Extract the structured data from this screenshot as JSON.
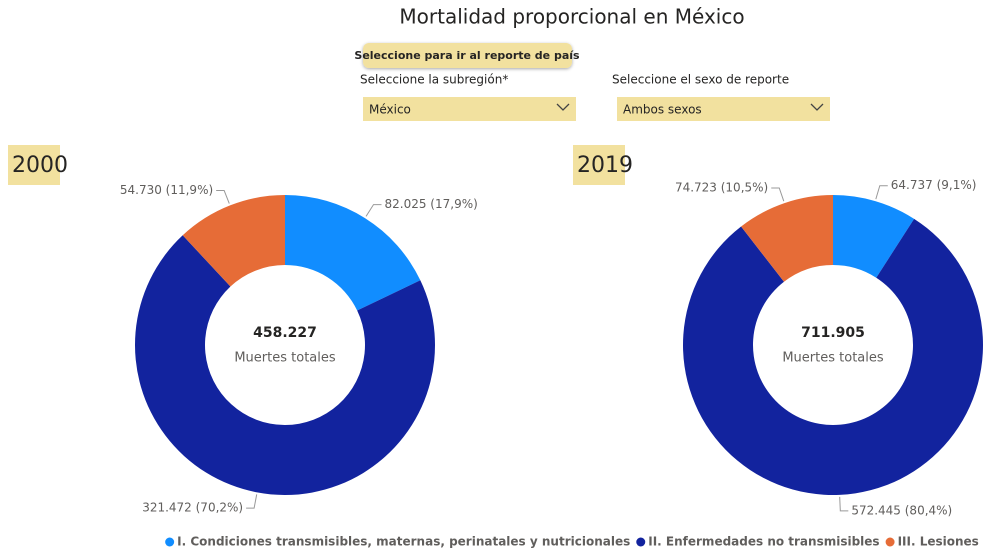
{
  "header": {
    "title": "Mortalidad proporcional en México"
  },
  "controls": {
    "button": "Seleccione para ir al reporte de país",
    "subregion_label": "Seleccione la subregión*",
    "subregion_value": "México",
    "sex_label": "Seleccione el sexo de reporte",
    "sex_value": "Ambos sexos"
  },
  "legend": {
    "categories": [
      "I. Condiciones transmisibles, maternas, perinatales y nutricionales",
      "II. Enfermedades no transmisibles",
      "III. Lesiones"
    ],
    "colors": [
      "#118dff",
      "#12239e",
      "#e66c37"
    ]
  },
  "chart_data": [
    {
      "type": "donut",
      "title": "2000",
      "values": [
        82025,
        321472,
        54730
      ],
      "value_labels": [
        "82.025 (17,9%)",
        "321.472 (70,2%)",
        "54.730 (11,9%)"
      ],
      "total": {
        "value": 458227,
        "label": "458.227"
      },
      "total_caption": "Muertes totales"
    },
    {
      "type": "donut",
      "title": "2019",
      "values": [
        64737,
        572445,
        74723
      ],
      "value_labels": [
        "64.737 (9,1%)",
        "572.445 (80,4%)",
        "74.723 (10,5%)"
      ],
      "total": {
        "value": 711905,
        "label": "711.905"
      },
      "total_caption": "Muertes totales"
    }
  ]
}
